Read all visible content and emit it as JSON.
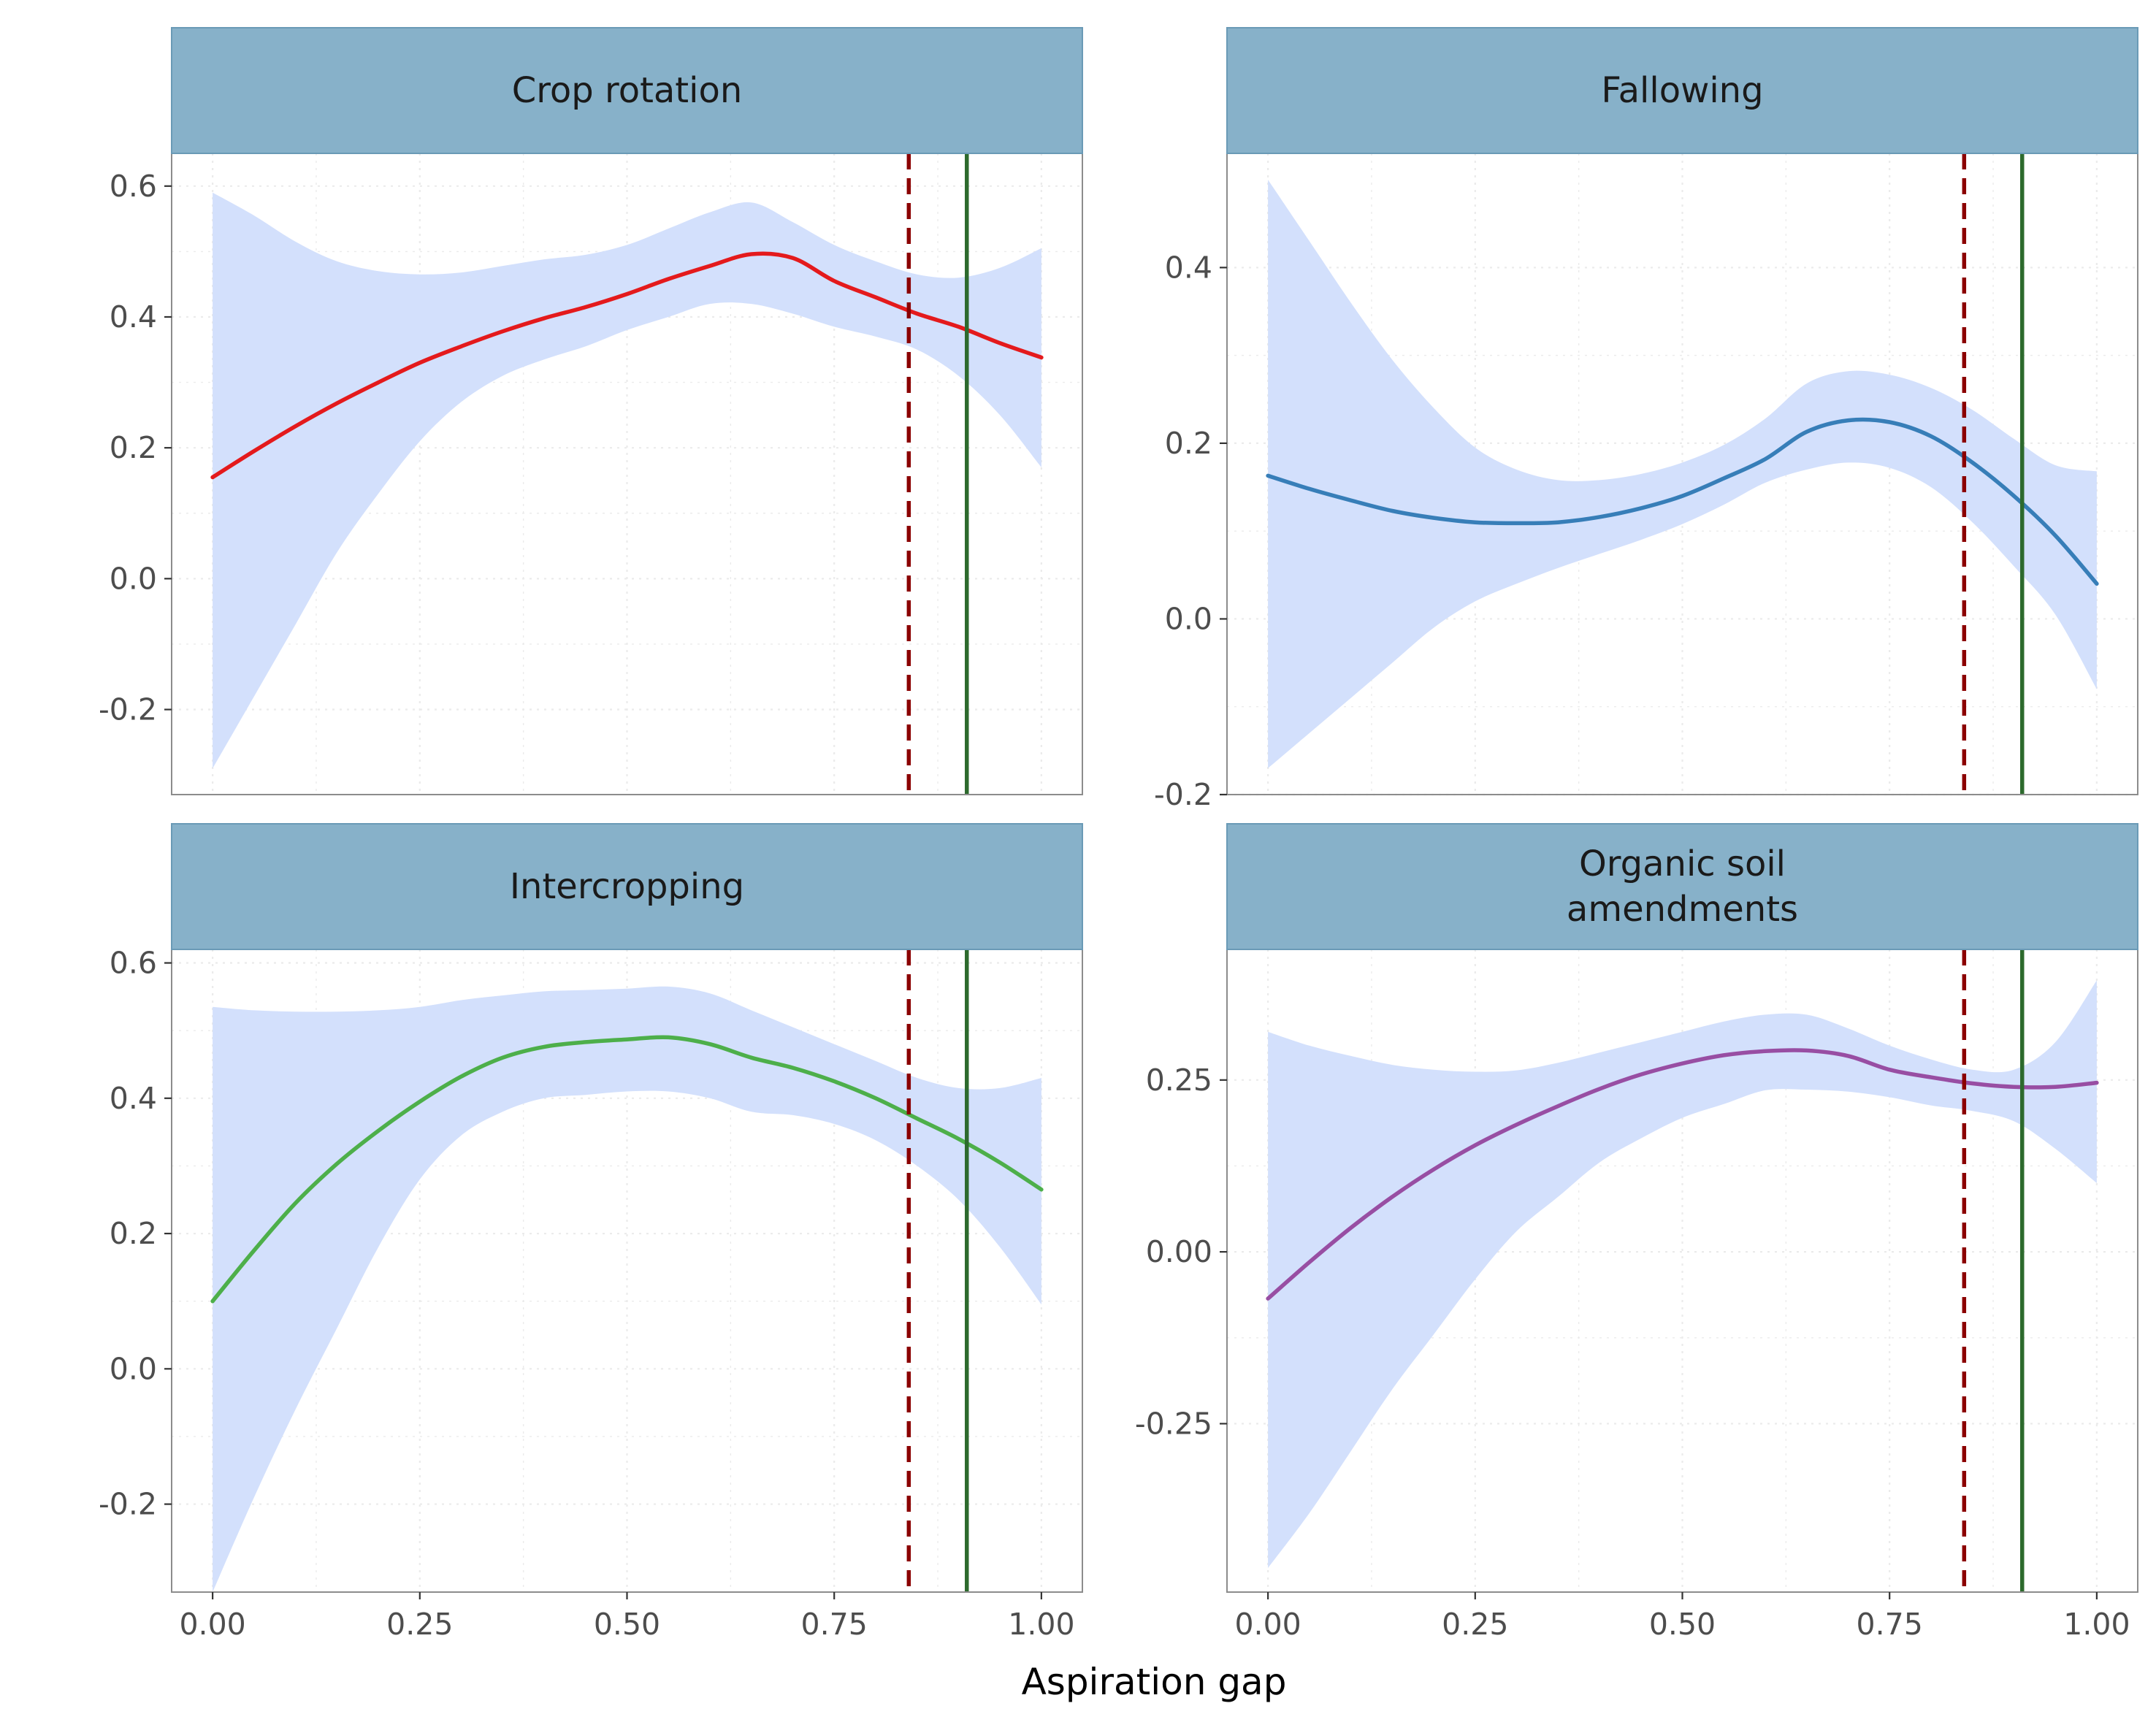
{
  "xlabel": "Aspiration gap",
  "colors": {
    "strip_fill": "#87b1c9",
    "strip_border": "#6a9ab6",
    "ribbon": "#d3e0fc",
    "dashed_ref": "#8b0000",
    "solid_ref": "#2d6a2d",
    "panel_border": "#8c8c8c",
    "grid": "#ebebeb"
  },
  "reference_lines": {
    "dashed_x": 0.84,
    "solid_x": 0.91
  },
  "chart_data": [
    {
      "type": "line",
      "title": "Crop rotation",
      "color": "#e41a1c",
      "xlim": [
        0,
        1
      ],
      "ylim": [
        -0.33,
        0.65
      ],
      "xticks": [
        "0.00",
        "0.25",
        "0.50",
        "0.75",
        "1.00"
      ],
      "yticks": [
        "-0.2",
        "0.0",
        "0.2",
        "0.4",
        "0.6"
      ],
      "x": [
        0,
        0.05,
        0.1,
        0.15,
        0.2,
        0.25,
        0.3,
        0.35,
        0.4,
        0.45,
        0.5,
        0.55,
        0.6,
        0.65,
        0.7,
        0.75,
        0.8,
        0.85,
        0.9,
        0.95,
        1.0
      ],
      "y": [
        0.155,
        0.195,
        0.233,
        0.268,
        0.3,
        0.33,
        0.355,
        0.378,
        0.398,
        0.415,
        0.435,
        0.458,
        0.478,
        0.496,
        0.49,
        0.455,
        0.43,
        0.405,
        0.385,
        0.36,
        0.338
      ],
      "lower": [
        -0.29,
        -0.18,
        -0.07,
        0.04,
        0.13,
        0.21,
        0.27,
        0.31,
        0.335,
        0.355,
        0.38,
        0.4,
        0.42,
        0.42,
        0.405,
        0.385,
        0.37,
        0.35,
        0.31,
        0.25,
        0.17
      ],
      "upper": [
        0.59,
        0.555,
        0.515,
        0.485,
        0.47,
        0.465,
        0.468,
        0.478,
        0.488,
        0.495,
        0.51,
        0.535,
        0.56,
        0.575,
        0.545,
        0.51,
        0.485,
        0.465,
        0.46,
        0.475,
        0.505
      ]
    },
    {
      "type": "line",
      "title": "Fallowing",
      "color": "#377eb8",
      "xlim": [
        0,
        1
      ],
      "ylim": [
        -0.2,
        0.53
      ],
      "xticks": [
        "0.00",
        "0.25",
        "0.50",
        "0.75",
        "1.00"
      ],
      "yticks": [
        "-0.2",
        "0.0",
        "0.2",
        "0.4"
      ],
      "x": [
        0,
        0.05,
        0.1,
        0.15,
        0.2,
        0.25,
        0.3,
        0.35,
        0.4,
        0.45,
        0.5,
        0.55,
        0.6,
        0.65,
        0.7,
        0.75,
        0.8,
        0.85,
        0.9,
        0.95,
        1.0
      ],
      "y": [
        0.163,
        0.148,
        0.135,
        0.123,
        0.115,
        0.11,
        0.109,
        0.11,
        0.116,
        0.126,
        0.14,
        0.16,
        0.182,
        0.213,
        0.226,
        0.224,
        0.208,
        0.178,
        0.14,
        0.095,
        0.04
      ],
      "lower": [
        -0.17,
        -0.13,
        -0.09,
        -0.05,
        -0.01,
        0.02,
        0.04,
        0.058,
        0.074,
        0.09,
        0.108,
        0.13,
        0.155,
        0.17,
        0.178,
        0.172,
        0.15,
        0.11,
        0.06,
        0.005,
        -0.08
      ],
      "upper": [
        0.5,
        0.43,
        0.36,
        0.295,
        0.24,
        0.195,
        0.17,
        0.158,
        0.158,
        0.165,
        0.178,
        0.198,
        0.228,
        0.268,
        0.282,
        0.278,
        0.263,
        0.238,
        0.205,
        0.175,
        0.168
      ]
    },
    {
      "type": "line",
      "title": "Intercropping",
      "color": "#4daf4a",
      "xlim": [
        0,
        1
      ],
      "ylim": [
        -0.33,
        0.62
      ],
      "xticks": [
        "0.00",
        "0.25",
        "0.50",
        "0.75",
        "1.00"
      ],
      "yticks": [
        "-0.2",
        "0.0",
        "0.2",
        "0.4",
        "0.6"
      ],
      "x": [
        0,
        0.05,
        0.1,
        0.15,
        0.2,
        0.25,
        0.3,
        0.35,
        0.4,
        0.45,
        0.5,
        0.55,
        0.6,
        0.65,
        0.7,
        0.75,
        0.8,
        0.85,
        0.9,
        0.95,
        1.0
      ],
      "y": [
        0.1,
        0.175,
        0.245,
        0.303,
        0.352,
        0.395,
        0.432,
        0.46,
        0.476,
        0.483,
        0.487,
        0.49,
        0.48,
        0.46,
        0.445,
        0.425,
        0.4,
        0.37,
        0.34,
        0.305,
        0.265
      ],
      "lower": [
        -0.33,
        -0.19,
        -0.06,
        0.06,
        0.18,
        0.28,
        0.345,
        0.38,
        0.4,
        0.405,
        0.41,
        0.41,
        0.4,
        0.38,
        0.375,
        0.362,
        0.338,
        0.3,
        0.25,
        0.18,
        0.095
      ],
      "upper": [
        0.535,
        0.53,
        0.528,
        0.528,
        0.53,
        0.535,
        0.545,
        0.552,
        0.558,
        0.56,
        0.562,
        0.565,
        0.555,
        0.53,
        0.505,
        0.48,
        0.455,
        0.43,
        0.415,
        0.415,
        0.43
      ]
    },
    {
      "type": "line",
      "title": "Organic soil amendments",
      "title_lines": [
        "Organic soil",
        "amendments"
      ],
      "color": "#984ea3",
      "xlim": [
        0,
        1
      ],
      "ylim": [
        -0.495,
        0.44
      ],
      "xticks": [
        "0.00",
        "0.25",
        "0.50",
        "0.75",
        "1.00"
      ],
      "yticks": [
        "-0.25",
        "0.00",
        "0.25"
      ],
      "x": [
        0,
        0.05,
        0.1,
        0.15,
        0.2,
        0.25,
        0.3,
        0.35,
        0.4,
        0.45,
        0.5,
        0.55,
        0.6,
        0.65,
        0.7,
        0.75,
        0.8,
        0.85,
        0.9,
        0.95,
        1.0
      ],
      "y": [
        -0.068,
        -0.015,
        0.035,
        0.08,
        0.12,
        0.155,
        0.185,
        0.212,
        0.237,
        0.258,
        0.274,
        0.286,
        0.292,
        0.293,
        0.285,
        0.265,
        0.254,
        0.245,
        0.24,
        0.24,
        0.246
      ],
      "lower": [
        -0.46,
        -0.38,
        -0.29,
        -0.2,
        -0.12,
        -0.04,
        0.03,
        0.08,
        0.13,
        0.165,
        0.195,
        0.215,
        0.235,
        0.236,
        0.233,
        0.225,
        0.213,
        0.205,
        0.19,
        0.15,
        0.1
      ],
      "upper": [
        0.32,
        0.3,
        0.285,
        0.272,
        0.265,
        0.262,
        0.264,
        0.275,
        0.29,
        0.305,
        0.32,
        0.335,
        0.345,
        0.345,
        0.325,
        0.3,
        0.28,
        0.265,
        0.265,
        0.305,
        0.395
      ]
    }
  ]
}
